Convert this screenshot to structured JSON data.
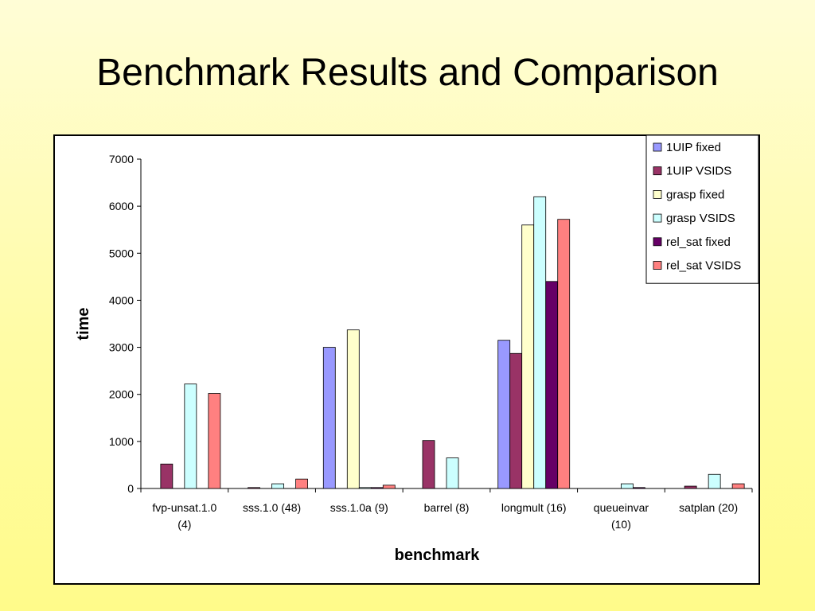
{
  "slide": {
    "title": "Benchmark Results and Comparison"
  },
  "chart_data": {
    "type": "bar",
    "title": "",
    "xlabel": "benchmark",
    "ylabel": "time",
    "ylim": [
      0,
      7000
    ],
    "yticks": [
      0,
      1000,
      2000,
      3000,
      4000,
      5000,
      6000,
      7000
    ],
    "grid": false,
    "legend_position": "top-right",
    "categories": [
      [
        "fvp-unsat.1.0",
        "(4)"
      ],
      [
        "sss.1.0 (48)"
      ],
      [
        "sss.1.0a (9)"
      ],
      [
        "barrel (8)"
      ],
      [
        "longmult (16)"
      ],
      [
        "queueinvar",
        "(10)"
      ],
      [
        "satplan (20)"
      ]
    ],
    "series": [
      {
        "name": "1UIP fixed",
        "color": "#9999ff",
        "values": [
          0,
          0,
          3000,
          0,
          3150,
          0,
          0
        ]
      },
      {
        "name": "1UIP VSIDS",
        "color": "#993366",
        "values": [
          520,
          20,
          0,
          1020,
          2870,
          0,
          50
        ]
      },
      {
        "name": "grasp fixed",
        "color": "#ffffcc",
        "values": [
          0,
          0,
          3370,
          0,
          5600,
          0,
          0
        ]
      },
      {
        "name": "grasp VSIDS",
        "color": "#ccffff",
        "values": [
          2220,
          100,
          20,
          650,
          6200,
          100,
          300
        ]
      },
      {
        "name": "rel_sat fixed",
        "color": "#660066",
        "values": [
          0,
          0,
          20,
          0,
          4400,
          20,
          0
        ]
      },
      {
        "name": "rel_sat VSIDS",
        "color": "#ff8080",
        "values": [
          2020,
          200,
          70,
          0,
          5720,
          0,
          100
        ]
      }
    ]
  }
}
